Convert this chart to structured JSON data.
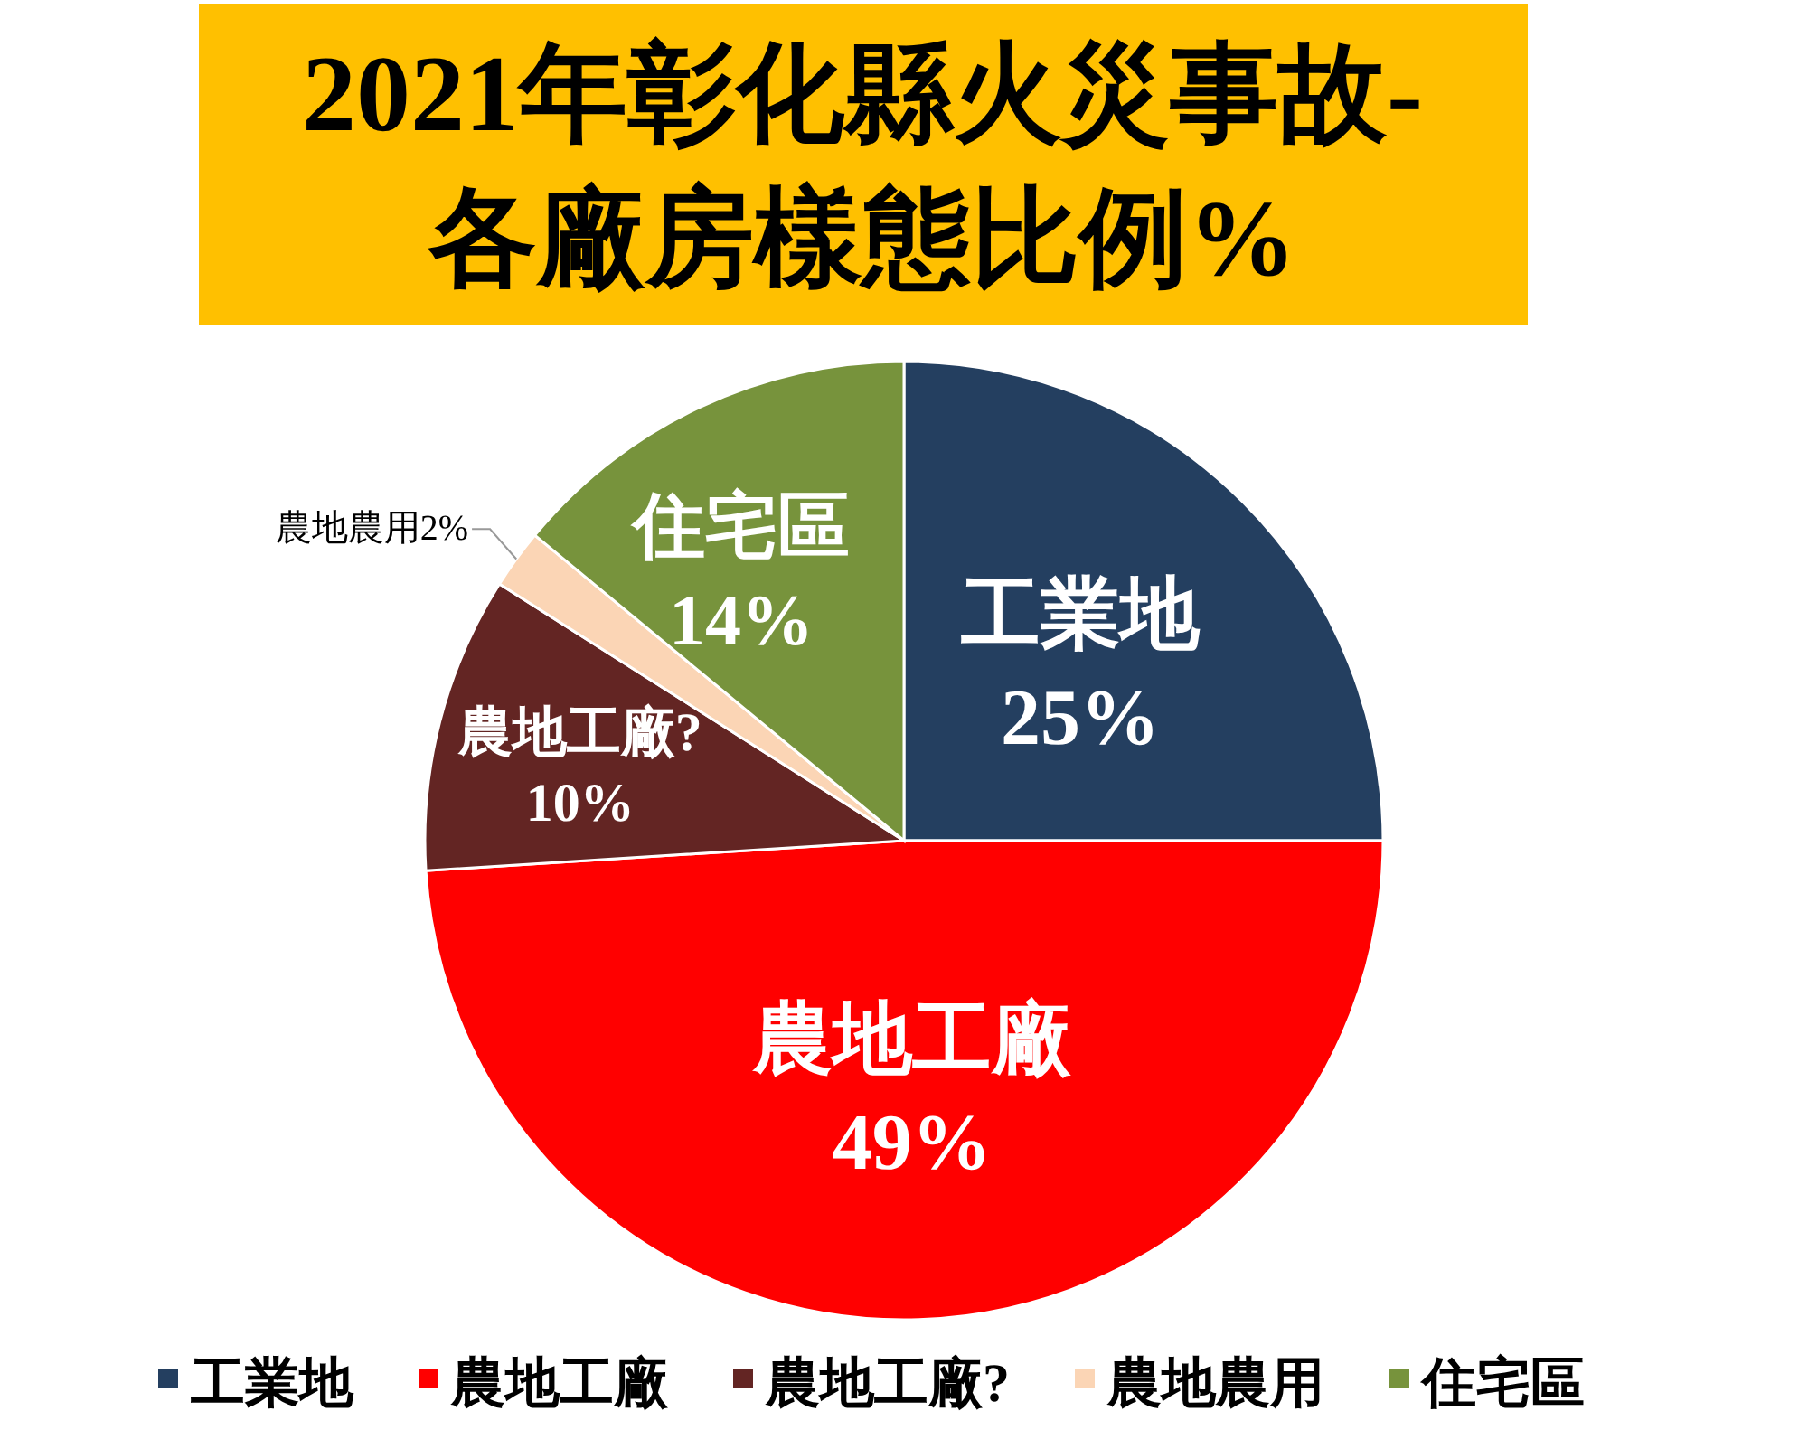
{
  "chart_data": {
    "type": "pie",
    "title": "2021年彰化縣火災事故-\n各廠房樣態比例%",
    "categories": [
      "工業地",
      "農地工廠",
      "農地工廠?",
      "農地農用",
      "住宅區"
    ],
    "values": [
      25,
      49,
      10,
      2,
      14
    ],
    "value_labels": [
      "25%",
      "49%",
      "10%",
      "2%",
      "14%"
    ],
    "colors": [
      "#243f60",
      "#ff0000",
      "#632523",
      "#fbd5b5",
      "#77933c"
    ],
    "legend": "bottom"
  }
}
